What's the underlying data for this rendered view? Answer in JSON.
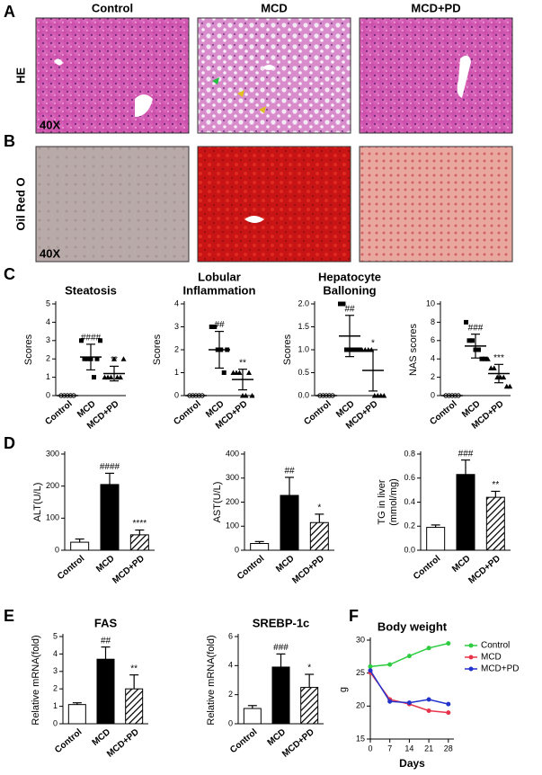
{
  "panel_labels": [
    "A",
    "B",
    "C",
    "D",
    "E",
    "F"
  ],
  "histology": {
    "columns": [
      "Control",
      "MCD",
      "MCD+PD"
    ],
    "rows": [
      "HE",
      "Oil Red O"
    ],
    "magnification": [
      "40X",
      "40X"
    ]
  },
  "chart_data": [
    {
      "type": "dot",
      "title": [
        "Steatosis"
      ],
      "ylabel": [
        "Scores"
      ],
      "categories": [
        "Control",
        "MCD",
        "MCD+PD"
      ],
      "points": [
        [
          0,
          0,
          0,
          0,
          0
        ],
        [
          3,
          2,
          2,
          2,
          1,
          2,
          3
        ],
        [
          1,
          1,
          1,
          2,
          1,
          1,
          2
        ]
      ],
      "means": [
        0,
        2.1,
        1.2
      ],
      "errors": [
        0,
        0.7,
        0.4
      ],
      "annotations": [
        null,
        "####",
        "**"
      ],
      "ylim": [
        0,
        5
      ],
      "yticks": [
        0,
        1,
        2,
        3,
        4,
        5
      ]
    },
    {
      "type": "dot",
      "title": [
        "Lobular",
        "Inflammation"
      ],
      "ylabel": [
        "Scores"
      ],
      "categories": [
        "Control",
        "MCD",
        "MCD+PD"
      ],
      "points": [
        [
          0,
          0,
          0,
          0,
          0
        ],
        [
          3,
          3,
          2,
          2,
          1,
          2
        ],
        [
          1,
          1,
          1,
          0,
          0,
          1,
          0
        ]
      ],
      "means": [
        0,
        2,
        0.7
      ],
      "errors": [
        0,
        0.8,
        0.45
      ],
      "annotations": [
        null,
        "##",
        "**"
      ],
      "ylim": [
        0,
        4
      ],
      "yticks": [
        0,
        1,
        2,
        3,
        4
      ]
    },
    {
      "type": "dot",
      "title": [
        "Hepatocyte",
        "Balloning"
      ],
      "ylabel": [
        "Scores"
      ],
      "categories": [
        "Control",
        "MCD",
        "MCD+PD"
      ],
      "points": [
        [
          0,
          0,
          0,
          0,
          0
        ],
        [
          2,
          2,
          1,
          1,
          1,
          1,
          1
        ],
        [
          1,
          1,
          1,
          1,
          0,
          0,
          0,
          0
        ]
      ],
      "means": [
        0,
        1.3,
        0.55
      ],
      "errors": [
        0,
        0.45,
        0.45
      ],
      "annotations": [
        null,
        "##",
        "*"
      ],
      "ylim": [
        0,
        2
      ],
      "yticks": [
        {
          "value": 0,
          "label": "0.0"
        },
        {
          "value": 0.5,
          "label": "0.5"
        },
        {
          "value": 1,
          "label": "1.0"
        },
        {
          "value": 1.5,
          "label": "1.5"
        },
        {
          "value": 2,
          "label": "2.0"
        }
      ]
    },
    {
      "type": "dot",
      "ylabel": [
        "NAS scores"
      ],
      "categories": [
        "Control",
        "MCD",
        "MCD+PD"
      ],
      "points": [
        [
          0,
          0,
          0,
          0,
          0
        ],
        [
          8,
          6,
          6,
          5,
          5,
          4,
          4
        ],
        [
          4,
          3,
          3,
          2,
          2,
          2,
          1,
          1
        ]
      ],
      "means": [
        0,
        5.4,
        2.4
      ],
      "errors": [
        0,
        1.3,
        1.0
      ],
      "annotations": [
        null,
        "###",
        "***"
      ],
      "ylim": [
        0,
        10
      ],
      "yticks": [
        0,
        2,
        4,
        6,
        8,
        10
      ]
    },
    {
      "type": "bar",
      "ylabel": [
        "ALT(U/L)"
      ],
      "categories": [
        "Control",
        "MCD",
        "MCD+PD"
      ],
      "values": [
        25,
        205,
        48
      ],
      "errors": [
        10,
        35,
        15
      ],
      "annotations": [
        null,
        "####",
        "****"
      ],
      "colors": [
        "#ffffff",
        "#000000",
        "hatch"
      ],
      "ylim": [
        0,
        300
      ],
      "yticks": [
        0,
        100,
        200,
        300
      ]
    },
    {
      "type": "bar",
      "ylabel": [
        "AST(U/L)"
      ],
      "categories": [
        "Control",
        "MCD",
        "MCD+PD"
      ],
      "values": [
        28,
        228,
        115
      ],
      "errors": [
        8,
        75,
        35
      ],
      "annotations": [
        null,
        "##",
        "*"
      ],
      "colors": [
        "#ffffff",
        "#000000",
        "hatch"
      ],
      "ylim": [
        0,
        400
      ],
      "yticks": [
        0,
        100,
        200,
        300,
        400
      ]
    },
    {
      "type": "bar",
      "ylabel": [
        "TG in liver",
        "(mmol/mg)"
      ],
      "categories": [
        "Control",
        "MCD",
        "MCD+PD"
      ],
      "values": [
        0.19,
        0.63,
        0.44
      ],
      "errors": [
        0.02,
        0.12,
        0.05
      ],
      "annotations": [
        null,
        "###",
        "**"
      ],
      "colors": [
        "#ffffff",
        "#000000",
        "hatch"
      ],
      "ylim": [
        0,
        0.8
      ],
      "yticks": [
        {
          "value": 0,
          "label": "0.0"
        },
        {
          "value": 0.2,
          "label": "0.2"
        },
        {
          "value": 0.4,
          "label": "0.4"
        },
        {
          "value": 0.6,
          "label": "0.6"
        },
        {
          "value": 0.8,
          "label": "0.8"
        }
      ]
    },
    {
      "type": "bar",
      "title": [
        "FAS"
      ],
      "ylabel": [
        "Relative mRNA(fold)"
      ],
      "categories": [
        "Control",
        "MCD",
        "MCD+PD"
      ],
      "values": [
        1.1,
        3.7,
        2.0
      ],
      "errors": [
        0.1,
        0.7,
        0.8
      ],
      "annotations": [
        null,
        "##",
        "**"
      ],
      "colors": [
        "#ffffff",
        "#000000",
        "hatch"
      ],
      "ylim": [
        0,
        5
      ],
      "yticks": [
        0,
        1,
        2,
        3,
        4,
        5
      ]
    },
    {
      "type": "bar",
      "title": [
        "SREBP-1c"
      ],
      "ylabel": [
        "Relative mRNA(fold)"
      ],
      "categories": [
        "Control",
        "MCD",
        "MCD+PD"
      ],
      "values": [
        1.05,
        3.9,
        2.5
      ],
      "errors": [
        0.2,
        0.9,
        0.9
      ],
      "annotations": [
        null,
        "###",
        "*"
      ],
      "colors": [
        "#ffffff",
        "#000000",
        "hatch"
      ],
      "ylim": [
        0,
        6
      ],
      "yticks": [
        0,
        2,
        4,
        6
      ]
    },
    {
      "type": "line",
      "title": [
        "Body weight"
      ],
      "ylabel": [
        "g"
      ],
      "xlabel": "Days",
      "x": [
        0,
        7,
        14,
        21,
        28
      ],
      "xlim": [
        0,
        30
      ],
      "xticks": [
        0,
        7,
        14,
        21,
        28
      ],
      "ylim": [
        15,
        30
      ],
      "yticks": [
        15,
        20,
        25,
        30
      ],
      "legend": "right",
      "series": [
        {
          "name": "Control",
          "color": "#2ecc40",
          "values": [
            26,
            26.3,
            27.6,
            28.8,
            29.5
          ]
        },
        {
          "name": "MCD",
          "color": "#e8344a",
          "values": [
            25.1,
            21,
            20.3,
            19.3,
            19.0
          ]
        },
        {
          "name": "MCD+PD",
          "color": "#2233cc",
          "values": [
            25.4,
            20.7,
            20.5,
            21,
            20.3
          ]
        }
      ]
    }
  ]
}
